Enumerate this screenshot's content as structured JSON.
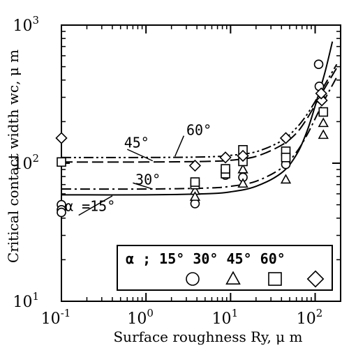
{
  "chart_data": {
    "type": "scatter",
    "xscale": "log",
    "yscale": "log",
    "xlim": [
      0.1,
      200
    ],
    "ylim": [
      10,
      1000
    ],
    "xlabel": "Surface roughness  Ry, μ m",
    "ylabel": "Critical contact width  wc, μ m",
    "x_ticks": [
      {
        "value": 0.1,
        "base": "10",
        "exp": "-1"
      },
      {
        "value": 1,
        "base": "10",
        "exp": "0"
      },
      {
        "value": 10,
        "base": "10",
        "exp": "1"
      },
      {
        "value": 100,
        "base": "10",
        "exp": "2"
      }
    ],
    "y_ticks": [
      {
        "value": 10,
        "base": "10",
        "exp": "1"
      },
      {
        "value": 100,
        "base": "10",
        "exp": "2"
      },
      {
        "value": 1000,
        "base": "10",
        "exp": "3"
      }
    ],
    "legend": {
      "title": "α ; 15°  30°  45°  60°",
      "position": "bottom-right",
      "entries": [
        {
          "label": "15°",
          "marker": "circle"
        },
        {
          "label": "30°",
          "marker": "triangle"
        },
        {
          "label": "45°",
          "marker": "square"
        },
        {
          "label": "60°",
          "marker": "diamond"
        }
      ]
    },
    "series": [
      {
        "marker": "circle",
        "line_style": "solid",
        "points": [
          [
            0.1,
            50
          ],
          [
            0.1,
            46
          ],
          [
            0.1,
            44
          ],
          [
            3.8,
            51
          ],
          [
            8.7,
            82
          ],
          [
            14,
            79
          ],
          [
            45,
            98
          ],
          [
            110,
            520
          ],
          [
            112,
            360
          ],
          [
            118,
            290
          ]
        ],
        "curve": [
          [
            0.1,
            59
          ],
          [
            1,
            59
          ],
          [
            5,
            60
          ],
          [
            10,
            62
          ],
          [
            20,
            68
          ],
          [
            40,
            85
          ],
          [
            60,
            115
          ],
          [
            80,
            170
          ],
          [
            100,
            260
          ],
          [
            130,
            450
          ],
          [
            160,
            760
          ]
        ]
      },
      {
        "marker": "triangle",
        "line_style": "dash-dot",
        "points": [
          [
            3.8,
            63
          ],
          [
            3.8,
            57
          ],
          [
            14,
            71
          ],
          [
            14,
            90
          ],
          [
            45,
            76
          ],
          [
            125,
            195
          ],
          [
            125,
            160
          ]
        ],
        "curve": [
          [
            0.1,
            65
          ],
          [
            1,
            65
          ],
          [
            5,
            66
          ],
          [
            10,
            68
          ],
          [
            20,
            74
          ],
          [
            40,
            92
          ],
          [
            60,
            120
          ],
          [
            80,
            160
          ],
          [
            100,
            210
          ],
          [
            130,
            290
          ],
          [
            180,
            420
          ]
        ]
      },
      {
        "marker": "square",
        "line_style": "long-dash",
        "points": [
          [
            0.1,
            102
          ],
          [
            3.8,
            70
          ],
          [
            3.8,
            73
          ],
          [
            8.7,
            84
          ],
          [
            8.7,
            91
          ],
          [
            14,
            103
          ],
          [
            14,
            125
          ],
          [
            45,
            122
          ],
          [
            45,
            110
          ],
          [
            125,
            235
          ]
        ],
        "curve": [
          [
            0.1,
            102
          ],
          [
            1,
            102
          ],
          [
            5,
            103
          ],
          [
            10,
            105
          ],
          [
            20,
            112
          ],
          [
            40,
            135
          ],
          [
            60,
            165
          ],
          [
            80,
            210
          ],
          [
            100,
            265
          ],
          [
            130,
            350
          ],
          [
            180,
            490
          ]
        ]
      },
      {
        "marker": "diamond",
        "line_style": "dash-dot-dot",
        "points": [
          [
            0.1,
            152
          ],
          [
            3.8,
            96
          ],
          [
            8.7,
            110
          ],
          [
            14,
            113
          ],
          [
            45,
            152
          ],
          [
            120,
            285
          ],
          [
            118,
            320
          ]
        ],
        "curve": [
          [
            0.1,
            110
          ],
          [
            1,
            110
          ],
          [
            5,
            111
          ],
          [
            10,
            114
          ],
          [
            20,
            121
          ],
          [
            40,
            145
          ],
          [
            60,
            180
          ],
          [
            80,
            225
          ],
          [
            100,
            280
          ],
          [
            130,
            370
          ],
          [
            180,
            520
          ]
        ]
      }
    ],
    "annotations": [
      {
        "text": "α =15°",
        "x": 0.11,
        "y": 45
      },
      {
        "text": "30°",
        "x": 0.75,
        "y": 70
      },
      {
        "text": "45°",
        "x": 0.55,
        "y": 130
      },
      {
        "text": "60°",
        "x": 3.0,
        "y": 160
      }
    ]
  }
}
